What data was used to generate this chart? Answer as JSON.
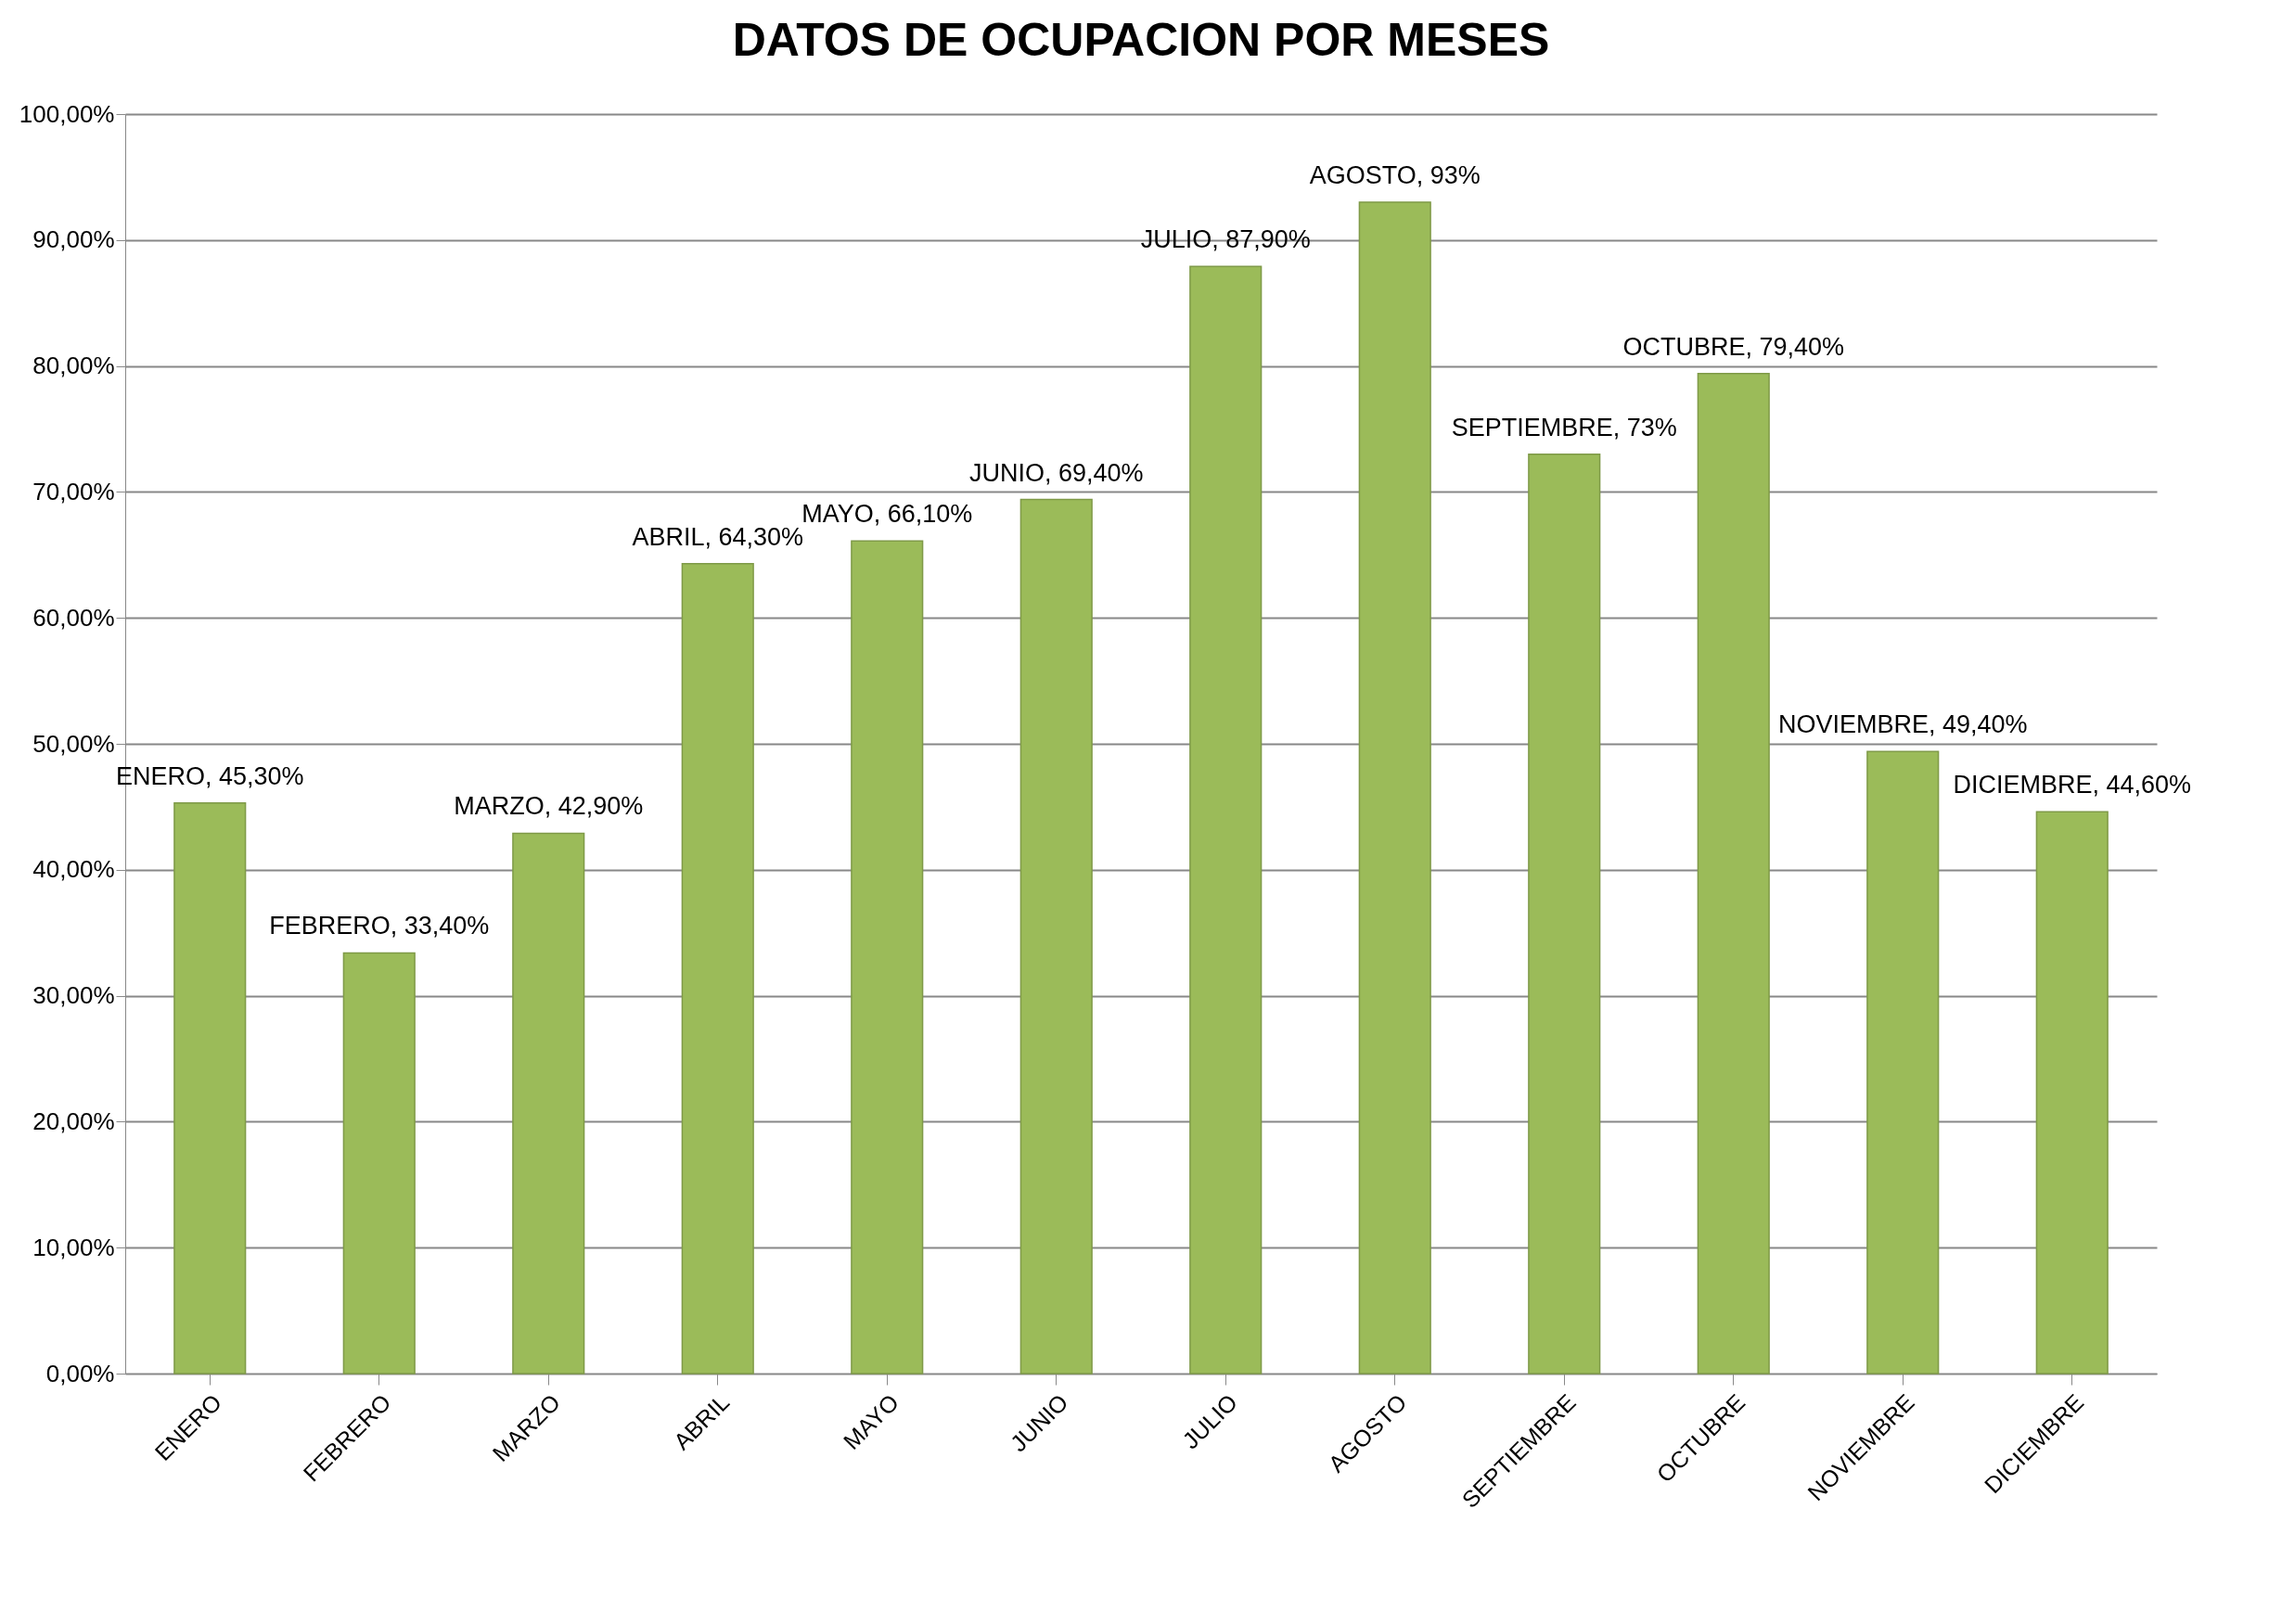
{
  "chart_data": {
    "type": "bar",
    "title": "DATOS DE OCUPACION POR MESES",
    "categories": [
      "ENERO",
      "FEBRERO",
      "MARZO",
      "ABRIL",
      "MAYO",
      "JUNIO",
      "JULIO",
      "AGOSTO",
      "SEPTIEMBRE",
      "OCTUBRE",
      "NOVIEMBRE",
      "DICIEMBRE"
    ],
    "values": [
      45.3,
      33.4,
      42.9,
      64.3,
      66.1,
      69.4,
      87.9,
      93,
      73,
      79.4,
      49.4,
      44.6
    ],
    "value_labels": [
      "ENERO, 45,30%",
      "FEBRERO, 33,40%",
      "MARZO, 42,90%",
      "ABRIL, 64,30%",
      "MAYO, 66,10%",
      "JUNIO, 69,40%",
      "JULIO, 87,90%",
      "AGOSTO, 93%",
      "SEPTIEMBRE, 73%",
      "OCTUBRE, 79,40%",
      "NOVIEMBRE, 49,40%",
      "DICIEMBRE, 44,60%"
    ],
    "color": "#9bbb59",
    "ylim": [
      0,
      100
    ],
    "yticks": [
      {
        "value": 0,
        "label": "0,00%"
      },
      {
        "value": 10,
        "label": "10,00%"
      },
      {
        "value": 20,
        "label": "20,00%"
      },
      {
        "value": 30,
        "label": "30,00%"
      },
      {
        "value": 40,
        "label": "40,00%"
      },
      {
        "value": 50,
        "label": "50,00%"
      },
      {
        "value": 60,
        "label": "60,00%"
      },
      {
        "value": 70,
        "label": "70,00%"
      },
      {
        "value": 80,
        "label": "80,00%"
      },
      {
        "value": 90,
        "label": "90,00%"
      },
      {
        "value": 100,
        "label": "100,00%"
      }
    ],
    "grid": "y"
  }
}
